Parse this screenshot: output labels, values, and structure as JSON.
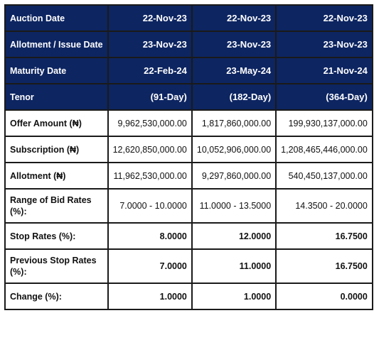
{
  "table": {
    "header_rows": [
      {
        "label": "Auction Date",
        "values": [
          "22-Nov-23",
          "22-Nov-23",
          "22-Nov-23"
        ]
      },
      {
        "label": "Allotment / Issue Date",
        "values": [
          "23-Nov-23",
          "23-Nov-23",
          "23-Nov-23"
        ]
      },
      {
        "label": "Maturity Date",
        "values": [
          "22-Feb-24",
          "23-May-24",
          "21-Nov-24"
        ]
      },
      {
        "label": "Tenor",
        "values": [
          "(91-Day)",
          "(182-Day)",
          "(364-Day)"
        ]
      }
    ],
    "body_rows": [
      {
        "label": "Offer Amount (₦)",
        "values": [
          "9,962,530,000.00",
          "1,817,860,000.00",
          "199,930,137,000.00"
        ]
      },
      {
        "label": "Subscription (₦)",
        "values": [
          "12,620,850,000.00",
          "10,052,906,000.00",
          "1,208,465,446,000.00"
        ]
      },
      {
        "label": "Allotment (₦)",
        "values": [
          "11,962,530,000.00",
          "9,297,860,000.00",
          "540,450,137,000.00"
        ]
      },
      {
        "label": "Range of Bid Rates (%):",
        "values": [
          "7.0000 - 10.0000",
          "11.0000 - 13.5000",
          "14.3500 - 20.0000"
        ]
      },
      {
        "label": "Stop Rates (%):",
        "values": [
          "8.0000",
          "12.0000",
          "16.7500"
        ]
      },
      {
        "label": "Previous Stop Rates (%):",
        "values": [
          "7.0000",
          "11.0000",
          "16.7500"
        ]
      },
      {
        "label": "Change (%):",
        "values": [
          "1.0000",
          "1.0000",
          "0.0000"
        ]
      }
    ]
  },
  "colors": {
    "header_bg": "#0d2561",
    "stop_rate": "#3aa13a",
    "previous_stop_rate": "#d8322b",
    "change": "#14254f"
  }
}
